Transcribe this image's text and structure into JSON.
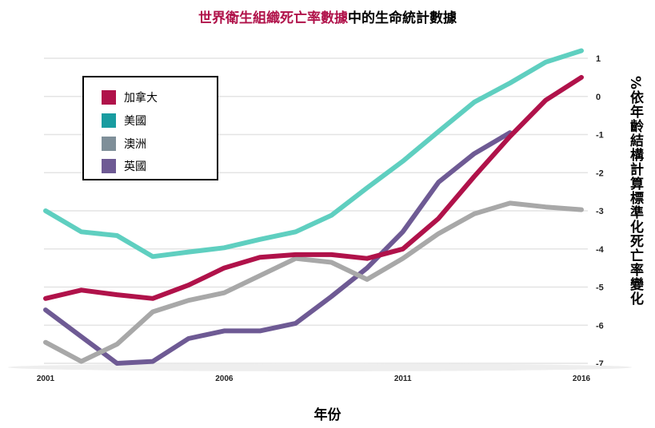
{
  "title": {
    "highlight": "世界衛生組織死亡率數據",
    "rest": "中的生命統計數據",
    "highlight_color": "#b0124a"
  },
  "chart_data": {
    "type": "line",
    "title": "世界衛生組織死亡率數據中的生命統計數據",
    "xlabel": "年份",
    "ylabel": "%依年齡結構計算標準化死亡率變化",
    "x": [
      2001,
      2002,
      2003,
      2004,
      2005,
      2006,
      2007,
      2008,
      2009,
      2010,
      2011,
      2012,
      2013,
      2014,
      2015,
      2016
    ],
    "xticks": [
      "2001",
      "2006",
      "2011",
      "2016"
    ],
    "yticks": [
      "1",
      "0",
      "-1",
      "-2",
      "-3",
      "-4",
      "-5",
      "-6",
      "-7"
    ],
    "ylim": [
      -7,
      1
    ],
    "xlim": [
      2001,
      2016
    ],
    "grid": true,
    "legend_position": "top-left",
    "series": [
      {
        "name": "加拿大",
        "color": "#b0124a",
        "values": [
          -5.3,
          -5.08,
          -5.2,
          -5.3,
          -4.95,
          -4.5,
          -4.22,
          -4.15,
          -4.15,
          -4.25,
          -4.0,
          -3.2,
          -2.1,
          -1.05,
          -0.1,
          0.5
        ]
      },
      {
        "name": "美國",
        "color": "#5fcfc0",
        "values": [
          -3.0,
          -3.55,
          -3.65,
          -4.2,
          -4.08,
          -3.97,
          -3.75,
          -3.55,
          -3.12,
          -2.4,
          -1.7,
          -0.92,
          -0.15,
          0.35,
          0.9,
          1.2
        ]
      },
      {
        "name": "澳洲",
        "color": "#a8a8a8",
        "values": [
          -6.45,
          -6.95,
          -6.5,
          -5.65,
          -5.35,
          -5.15,
          -4.7,
          -4.25,
          -4.35,
          -4.8,
          -4.25,
          -3.6,
          -3.08,
          -2.8,
          -2.9,
          -2.97
        ]
      },
      {
        "name": "英國",
        "color": "#6e5a94",
        "values": [
          -5.6,
          -6.3,
          -7.0,
          -6.95,
          -6.35,
          -6.15,
          -6.15,
          -5.95,
          -5.25,
          -4.5,
          -3.55,
          -2.25,
          -1.5,
          -0.95,
          null,
          null
        ]
      }
    ]
  },
  "legend_swatch_colors": [
    "#b0124a",
    "#199ca0",
    "#7f8f99",
    "#6e5a94"
  ]
}
